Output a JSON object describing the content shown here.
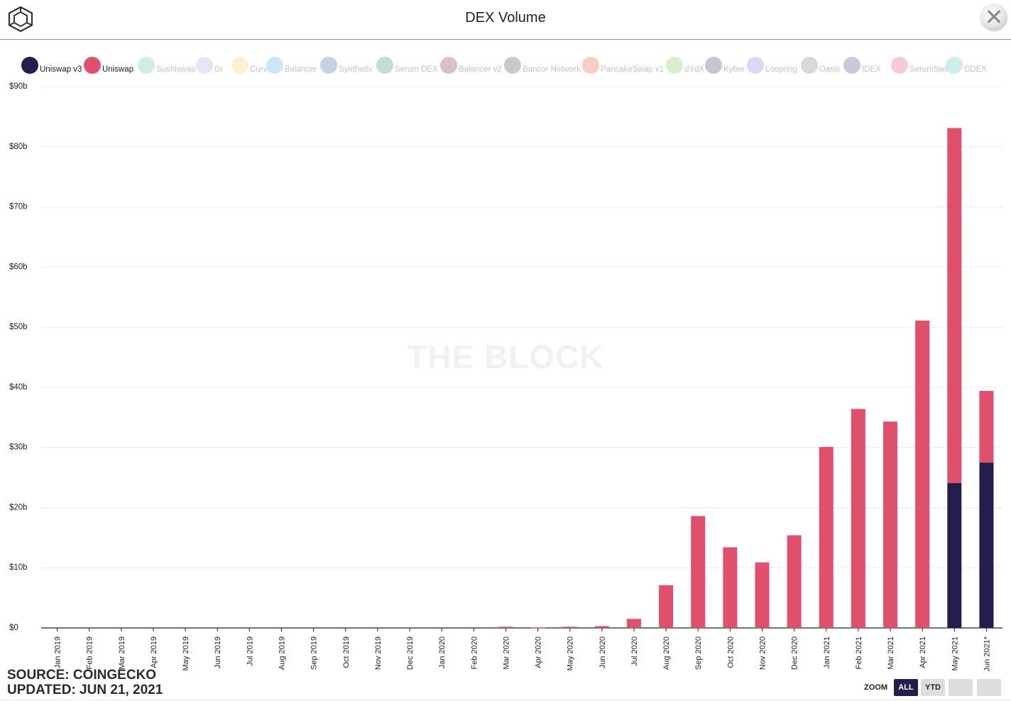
{
  "header": {
    "title": "DEX Volume",
    "close_icon": "close-icon",
    "logo_icon": "cube-logo-icon"
  },
  "watermark": "THE BLOCK",
  "legend": [
    {
      "label": "Uniswap v3",
      "color": "#251d4f",
      "active": true
    },
    {
      "label": "Uniswap",
      "color": "#e0506c",
      "active": true
    },
    {
      "label": "Sushiswap",
      "color": "#cfece6",
      "active": false
    },
    {
      "label": "0x",
      "color": "#e6e4f5",
      "active": false
    },
    {
      "label": "Curve",
      "color": "#fbf1cd",
      "active": false
    },
    {
      "label": "Balancer",
      "color": "#cbe7f6",
      "active": false
    },
    {
      "label": "Synthetix",
      "color": "#c3d2e2",
      "active": false
    },
    {
      "label": "Serum DEX",
      "color": "#c4dcd9",
      "active": false
    },
    {
      "label": "Balancer v2",
      "color": "#d9c0cc",
      "active": false
    },
    {
      "label": "Bancor Network",
      "color": "#c3cccc",
      "active": false
    },
    {
      "label": "PancakeSwap v1",
      "color": "#f9cdc6",
      "active": false
    },
    {
      "label": "dYdX",
      "color": "#d6eecb",
      "active": false
    },
    {
      "label": "Kyber",
      "color": "#c6c6ce",
      "active": false
    },
    {
      "label": "Loopring",
      "color": "#d8d9f5",
      "active": false
    },
    {
      "label": "Oasis",
      "color": "#d9d9d9",
      "active": false
    },
    {
      "label": "IDEX",
      "color": "#cac8dc",
      "active": false
    },
    {
      "label": "SerumSwap",
      "color": "#f7cad4",
      "active": false
    },
    {
      "label": "DDEX",
      "color": "#cdeeea",
      "active": false
    }
  ],
  "chart_data": {
    "type": "bar",
    "stacked": true,
    "title": "DEX Volume",
    "categories": [
      "Jan 2019",
      "Feb 2019",
      "Mar 2019",
      "Apr 2019",
      "May 2019",
      "Jun 2019",
      "Jul 2019",
      "Aug 2019",
      "Sep 2019",
      "Oct 2019",
      "Nov 2019",
      "Dec 2019",
      "Jan 2020",
      "Feb 2020",
      "Mar 2020",
      "Apr 2020",
      "May 2020",
      "Jun 2020",
      "Jul 2020",
      "Aug 2020",
      "Sep 2020",
      "Oct 2020",
      "Nov 2020",
      "Dec 2020",
      "Jan 2021",
      "Feb 2021",
      "Mar 2021",
      "Apr 2021",
      "May 2021",
      "Jun 2021*"
    ],
    "series": [
      {
        "name": "Uniswap v3",
        "color": "#251d4f",
        "values": [
          0,
          0,
          0,
          0,
          0,
          0,
          0,
          0,
          0,
          0,
          0,
          0,
          0,
          0,
          0,
          0,
          0,
          0,
          0,
          0,
          0,
          0,
          0,
          0,
          0,
          0,
          0,
          0,
          24.1,
          27.5
        ]
      },
      {
        "name": "Uniswap",
        "color": "#e0506c",
        "values": [
          0,
          0,
          0,
          0,
          0,
          0,
          0,
          0,
          0,
          0,
          0,
          0,
          0,
          0,
          0.2,
          0.05,
          0.2,
          0.3,
          1.5,
          7.1,
          18.6,
          13.4,
          10.9,
          15.4,
          30.1,
          36.4,
          34.3,
          51.1,
          59.0,
          11.9
        ]
      }
    ],
    "y_ticks": [
      "$0",
      "$10b",
      "$20b",
      "$30b",
      "$40b",
      "$50b",
      "$60b",
      "$70b",
      "$80b",
      "$90b"
    ],
    "ylim": [
      0,
      90
    ],
    "grid": true,
    "legend_position": "top"
  },
  "footer": {
    "source": "SOURCE: COINGECKO",
    "updated": "UPDATED: JUN 21, 2021"
  },
  "zoom": {
    "label": "ZOOM",
    "buttons": [
      {
        "label": "ALL",
        "active": true
      },
      {
        "label": "YTD",
        "active": false
      },
      {
        "label": "",
        "active": false
      },
      {
        "label": "",
        "active": false
      }
    ]
  }
}
